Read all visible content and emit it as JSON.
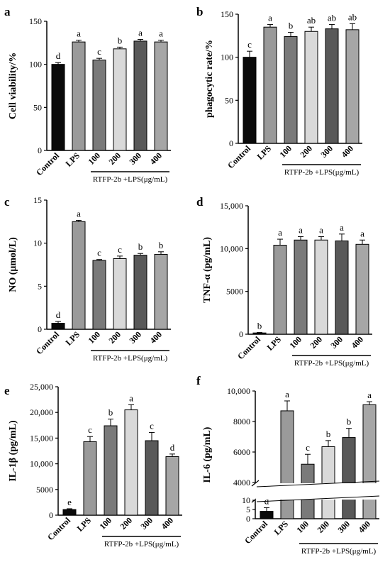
{
  "figure": {
    "groups": [
      "Control",
      "LPS",
      "100",
      "200",
      "300",
      "400"
    ],
    "treatment_label": "RTFP-2b +LPS(μg/mL)"
  },
  "colors": {
    "Control": "#0a0a0a",
    "LPS": "#9a9a9a",
    "100": "#7a7a7a",
    "200": "#d9d9d9",
    "300": "#595959",
    "400": "#a6a6a6"
  },
  "chart_data": [
    {
      "panel": "a",
      "type": "bar",
      "categories": [
        "Control",
        "LPS",
        "100",
        "200",
        "300",
        "400"
      ],
      "values": [
        100,
        126,
        105,
        118,
        127,
        126
      ],
      "errors": [
        2,
        2,
        2,
        2,
        2,
        2
      ],
      "letters": [
        "d",
        "a",
        "c",
        "b",
        "a",
        "a"
      ],
      "ylabel": "Cell viability/%",
      "ylim": [
        0,
        150
      ],
      "yticks": [
        "0",
        "50",
        "100",
        "150"
      ]
    },
    {
      "panel": "b",
      "type": "bar",
      "categories": [
        "Control",
        "LPS",
        "100",
        "200",
        "300",
        "400"
      ],
      "values": [
        100,
        135,
        124,
        130,
        133,
        132
      ],
      "errors": [
        7,
        3,
        5,
        5,
        5,
        7
      ],
      "letters": [
        "c",
        "a",
        "b",
        "ab",
        "ab",
        "ab"
      ],
      "ylabel": "phagocytic rate/%",
      "ylim": [
        0,
        150
      ],
      "yticks": [
        "0",
        "50",
        "100",
        "150"
      ]
    },
    {
      "panel": "c",
      "type": "bar",
      "categories": [
        "Control",
        "LPS",
        "100",
        "200",
        "300",
        "400"
      ],
      "values": [
        0.7,
        12.5,
        8.0,
        8.2,
        8.6,
        8.7
      ],
      "errors": [
        0.2,
        0.15,
        0.1,
        0.3,
        0.2,
        0.3
      ],
      "letters": [
        "d",
        "a",
        "c",
        "c",
        "b",
        "b"
      ],
      "ylabel": "NO (μmol/L)",
      "ylim": [
        0,
        15
      ],
      "yticks": [
        "0",
        "5",
        "10",
        "15"
      ]
    },
    {
      "panel": "d",
      "type": "bar",
      "categories": [
        "Control",
        "LPS",
        "100",
        "200",
        "300",
        "400"
      ],
      "values": [
        150,
        10400,
        11000,
        11000,
        10900,
        10500
      ],
      "errors": [
        50,
        700,
        400,
        400,
        800,
        500
      ],
      "letters": [
        "b",
        "a",
        "a",
        "a",
        "a",
        "a"
      ],
      "ylabel": "TNF-α (pg/mL)",
      "ylim": [
        0,
        15000
      ],
      "yticks": [
        "0",
        "5000",
        "10,000",
        "15,000"
      ]
    },
    {
      "panel": "e",
      "type": "bar",
      "categories": [
        "Control",
        "LPS",
        "100",
        "200",
        "300",
        "400"
      ],
      "values": [
        1100,
        14300,
        17400,
        20500,
        14500,
        11400
      ],
      "errors": [
        150,
        1000,
        1300,
        1000,
        1600,
        500
      ],
      "letters": [
        "e",
        "c",
        "b",
        "a",
        "c",
        "d"
      ],
      "ylabel": "IL-1β (pg/mL)",
      "ylim": [
        0,
        25000
      ],
      "yticks": [
        "0",
        "5000",
        "10,000",
        "15,000",
        "20,000",
        "25,000"
      ]
    },
    {
      "panel": "f",
      "type": "bar",
      "categories": [
        "Control",
        "LPS",
        "100",
        "200",
        "300",
        "400"
      ],
      "values": [
        4,
        8700,
        5200,
        6350,
        6950,
        9100
      ],
      "errors": [
        2,
        650,
        650,
        400,
        600,
        200
      ],
      "letters": [
        "d",
        "a",
        "c",
        "b",
        "b",
        "a"
      ],
      "ylabel": "IL-6 (pg/mL)",
      "broken_axis": true,
      "ylim_lower": [
        0,
        10
      ],
      "ylim_upper": [
        4000,
        10000
      ],
      "yticks_lower": [
        "0",
        "5",
        "10"
      ],
      "yticks_upper": [
        "4000",
        "6000",
        "8000",
        "10,000"
      ]
    }
  ]
}
